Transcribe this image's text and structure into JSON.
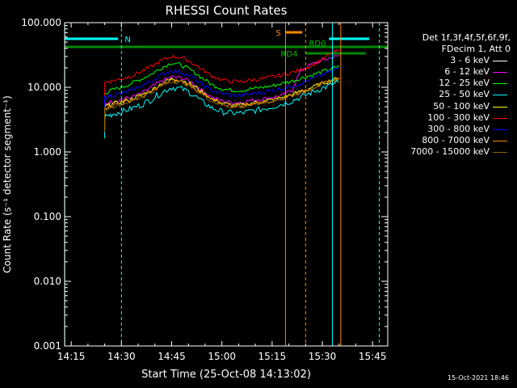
{
  "chart_data": {
    "type": "line",
    "title": "RHESSI Count Rates",
    "xlabel": "Start Time (25-Oct-08 14:13:02)",
    "ylabel": "Count Rate (s⁻¹ detector segment⁻¹)",
    "yscale": "log",
    "ylim": [
      0.001,
      100
    ],
    "xlim_minutes_since_start": [
      0,
      96.5
    ],
    "x_ticks": [
      "14:15",
      "14:30",
      "14:45",
      "15:00",
      "15:15",
      "15:30",
      "15:45"
    ],
    "y_ticks": [
      "100.000",
      "10.000",
      "1.000",
      "0.100",
      "0.010",
      "0.001"
    ],
    "grid": false,
    "legend_position": "right",
    "legend_header": [
      "Det 1f,3f,4f,5f,6f,9f,",
      "FDecim 1, Att 0"
    ],
    "x": [
      "14:25",
      "14:27",
      "14:30",
      "14:33",
      "14:36",
      "14:39",
      "14:42",
      "14:45",
      "14:48",
      "14:51",
      "14:54",
      "14:57",
      "15:00",
      "15:03",
      "15:06",
      "15:09",
      "15:12",
      "15:15",
      "15:18",
      "15:21",
      "15:24",
      "15:27",
      "15:30",
      "15:33",
      "15:35"
    ],
    "series": [
      {
        "name": "3 - 6 keV",
        "color": "#000000",
        "values": [
          5.6,
          6,
          6.5,
          7,
          8,
          10,
          12.5,
          14.5,
          14,
          12,
          9,
          7,
          6.2,
          5.8,
          5.9,
          6.3,
          6.6,
          7,
          7.5,
          8.2,
          9,
          10,
          11.5,
          13,
          14
        ]
      },
      {
        "name": "6 - 12 keV",
        "color": "#ff00ff",
        "values": [
          5.5,
          6,
          6.5,
          7,
          8,
          10,
          12.5,
          14.5,
          14,
          12,
          9,
          7,
          6.2,
          5.8,
          5.9,
          6.3,
          6.6,
          7,
          7.5,
          9,
          19,
          23,
          26,
          29,
          31
        ]
      },
      {
        "name": "12 - 25 keV",
        "color": "#00ff00",
        "values": [
          8,
          9,
          10,
          11.5,
          13.5,
          16,
          20,
          24,
          22,
          18,
          14,
          11,
          9.5,
          9,
          9,
          9.5,
          10,
          10.5,
          11.5,
          12.5,
          14,
          15.5,
          17.5,
          19.5,
          21
        ]
      },
      {
        "name": "25 - 50 keV",
        "color": "#00ffff",
        "values": [
          3.5,
          3.8,
          4.2,
          4.7,
          5.4,
          6.5,
          8.3,
          10,
          9.5,
          8,
          6,
          4.8,
          4.2,
          4,
          4,
          4.3,
          4.6,
          5,
          5.5,
          6.2,
          7.2,
          8.4,
          9.7,
          11,
          12
        ]
      },
      {
        "name": "50 - 100 keV",
        "color": "#ffff00",
        "values": [
          5,
          5.5,
          6,
          6.6,
          7.6,
          9,
          11.5,
          13.5,
          13,
          11,
          8.5,
          6.6,
          5.7,
          5.3,
          5.3,
          5.7,
          6,
          6.4,
          7,
          7.8,
          8.8,
          10,
          11.5,
          13,
          14
        ]
      },
      {
        "name": "100 - 300 keV",
        "color": "#ff0000",
        "values": [
          12,
          12.5,
          13.5,
          15,
          17.5,
          21,
          26,
          30,
          29,
          24,
          19,
          15,
          13,
          12.3,
          12.3,
          13,
          13.5,
          14.5,
          15.5,
          17,
          19,
          22,
          27,
          34,
          37
        ]
      },
      {
        "name": "300 - 800 keV",
        "color": "#0000ff",
        "values": [
          7,
          7.5,
          8,
          9,
          10.5,
          12.5,
          15.5,
          18,
          17,
          14.5,
          11,
          9,
          8,
          7.5,
          7.5,
          8,
          8.3,
          9,
          9.6,
          10.5,
          11.7,
          13.5,
          15.5,
          18,
          20
        ]
      },
      {
        "name": "800 - 7000 keV",
        "color": "#ff8800",
        "values": [
          4.8,
          5.2,
          5.7,
          6.3,
          7.2,
          8.6,
          10.8,
          12.8,
          12.3,
          10.4,
          8,
          6.3,
          5.5,
          5.2,
          5.2,
          5.5,
          5.9,
          6.3,
          6.8,
          7.6,
          8.6,
          9.8,
          11.3,
          12.8,
          14
        ]
      },
      {
        "name": "7000 - 15000 keV",
        "color": "#886600",
        "values": [
          4.6,
          5,
          5.5,
          6.1,
          7,
          8.4,
          10.5,
          12.4,
          12,
          10.2,
          7.8,
          6.1,
          5.4,
          5,
          5,
          5.4,
          5.7,
          6.1,
          6.6,
          7.4,
          8.4,
          9.6,
          11,
          12.5,
          13.6
        ]
      }
    ],
    "annotations": [
      "N",
      "S",
      "RD0",
      "RD4"
    ]
  },
  "timestamp": "15-Oct-2021 18:46"
}
